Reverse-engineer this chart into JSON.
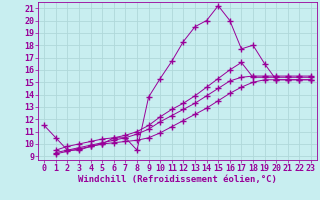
{
  "title": "",
  "xlabel": "Windchill (Refroidissement éolien,°C)",
  "bg_color": "#c8eef0",
  "line_color": "#990099",
  "grid_color": "#aadddd",
  "xlim": [
    -0.5,
    23.5
  ],
  "ylim": [
    8.7,
    21.5
  ],
  "xticks": [
    0,
    1,
    2,
    3,
    4,
    5,
    6,
    7,
    8,
    9,
    10,
    11,
    12,
    13,
    14,
    15,
    16,
    17,
    18,
    19,
    20,
    21,
    22,
    23
  ],
  "yticks": [
    9,
    10,
    11,
    12,
    13,
    14,
    15,
    16,
    17,
    18,
    19,
    20,
    21
  ],
  "line1_x": [
    0,
    1,
    2,
    3,
    4,
    5,
    6,
    7,
    8,
    9,
    10,
    11,
    12,
    13,
    14,
    15,
    16,
    17,
    18,
    19,
    20,
    21,
    22,
    23
  ],
  "line1_y": [
    11.5,
    10.5,
    9.5,
    9.5,
    9.8,
    10.0,
    10.5,
    10.5,
    9.5,
    13.8,
    15.3,
    16.7,
    18.3,
    19.5,
    20.0,
    21.2,
    20.0,
    17.7,
    18.0,
    16.5,
    15.2,
    15.2,
    15.2,
    15.2
  ],
  "line2_x": [
    1,
    2,
    3,
    4,
    5,
    6,
    7,
    8,
    9,
    10,
    11,
    12,
    13,
    14,
    15,
    16,
    17,
    18,
    19,
    20,
    21,
    22,
    23
  ],
  "line2_y": [
    9.2,
    9.4,
    9.6,
    9.8,
    10.0,
    10.1,
    10.2,
    10.3,
    10.5,
    10.9,
    11.4,
    11.9,
    12.4,
    12.9,
    13.5,
    14.1,
    14.6,
    15.0,
    15.2,
    15.2,
    15.2,
    15.2,
    15.2
  ],
  "line3_x": [
    1,
    2,
    3,
    4,
    5,
    6,
    7,
    8,
    9,
    10,
    11,
    12,
    13,
    14,
    15,
    16,
    17,
    18,
    19,
    20,
    21,
    22,
    23
  ],
  "line3_y": [
    9.3,
    9.5,
    9.7,
    9.9,
    10.1,
    10.3,
    10.5,
    10.8,
    11.2,
    11.8,
    12.3,
    12.8,
    13.3,
    13.9,
    14.5,
    15.1,
    15.4,
    15.5,
    15.5,
    15.5,
    15.5,
    15.5,
    15.5
  ],
  "line4_x": [
    1,
    2,
    3,
    4,
    5,
    6,
    7,
    8,
    9,
    10,
    11,
    12,
    13,
    14,
    15,
    16,
    17,
    18,
    19,
    20,
    21,
    22,
    23
  ],
  "line4_y": [
    9.5,
    9.8,
    10.0,
    10.2,
    10.4,
    10.5,
    10.7,
    11.0,
    11.5,
    12.2,
    12.8,
    13.3,
    13.9,
    14.6,
    15.3,
    16.0,
    16.6,
    15.4,
    15.4,
    15.4,
    15.4,
    15.4,
    15.4
  ],
  "xlabel_fontsize": 6.5,
  "tick_fontsize": 6,
  "marker": "+",
  "markersize": 4,
  "lw": 0.7
}
